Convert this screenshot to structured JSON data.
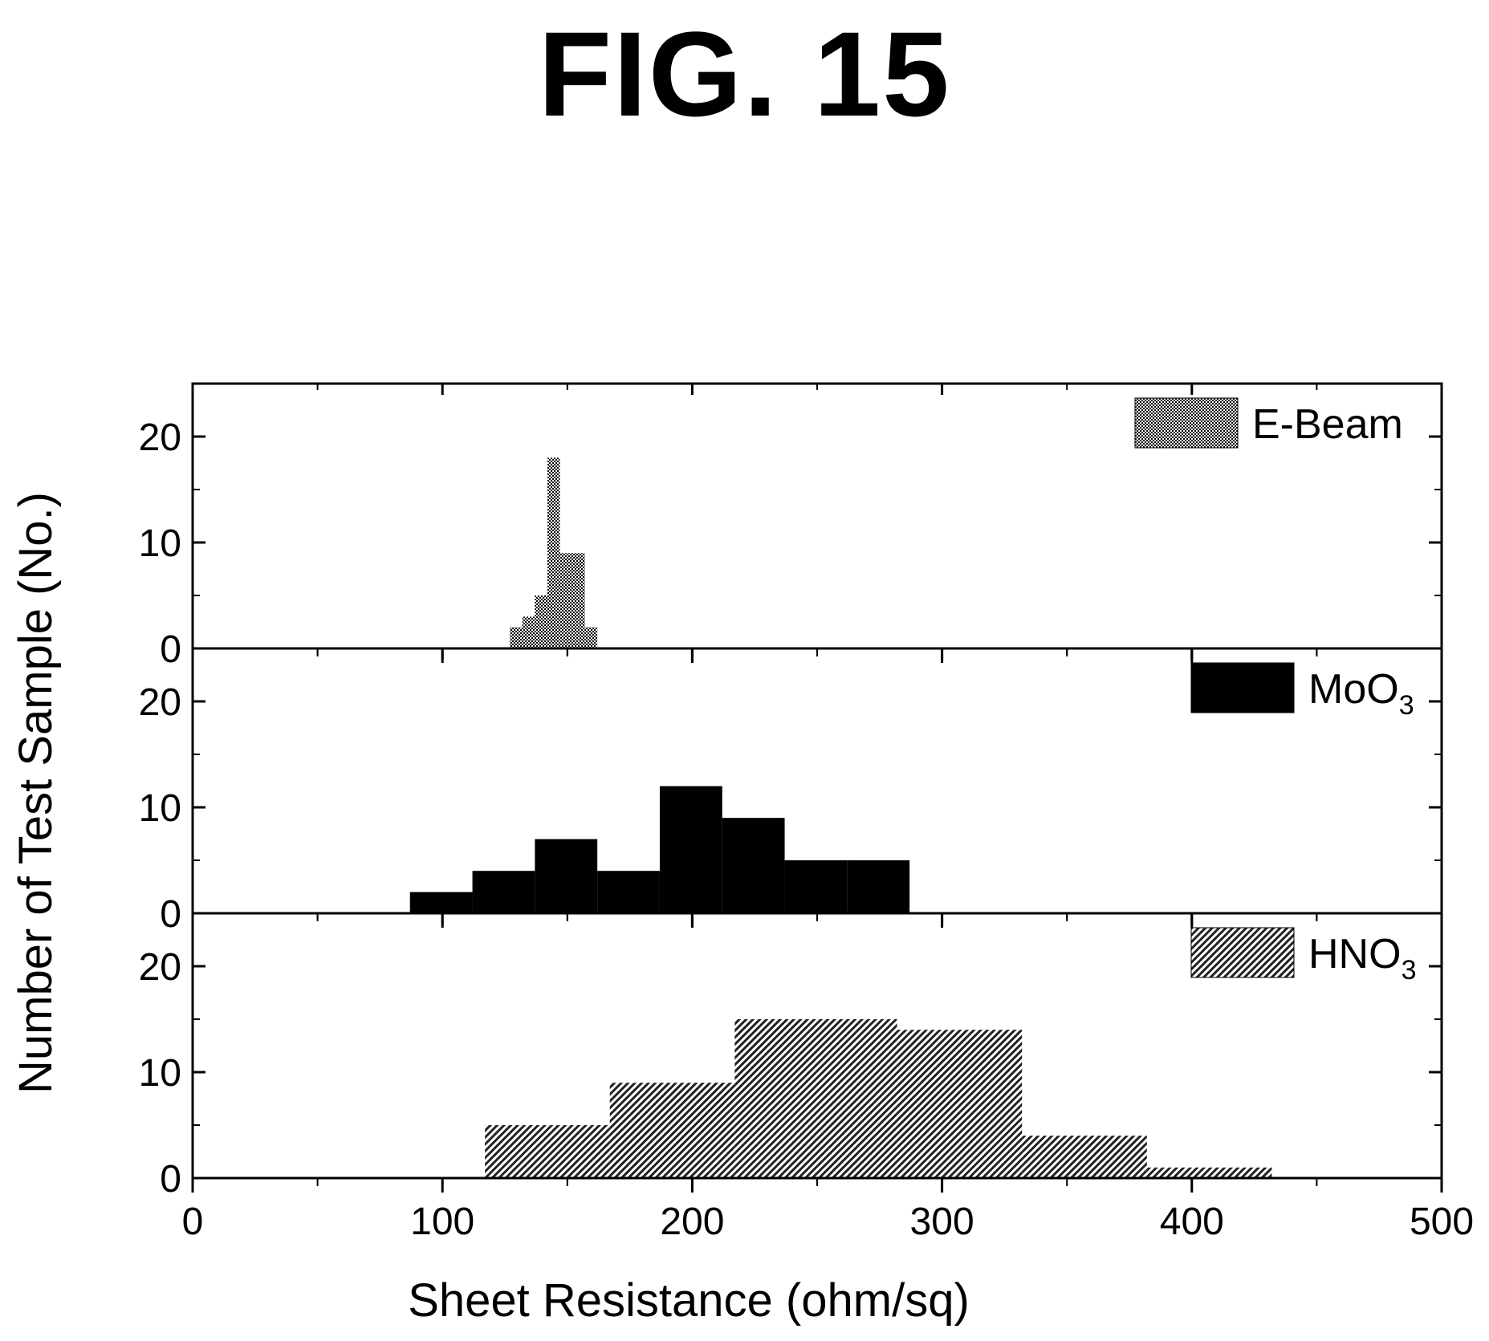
{
  "figure_title": "FIG. 15",
  "chart_data": {
    "type": "bar",
    "subtype": "stacked-histogram-panels",
    "xlabel": "Sheet Resistance (ohm/sq)",
    "ylabel": "Number of Test Sample (No.)",
    "xlim": [
      0,
      500
    ],
    "ylim": [
      0,
      25
    ],
    "x_ticks": [
      0,
      100,
      200,
      300,
      400,
      500
    ],
    "y_ticks": [
      0,
      10,
      20
    ],
    "grid": false,
    "legend_position": "top-right",
    "panels": [
      {
        "legend_label": "E-Beam",
        "legend_sub": "",
        "fill": "#555555",
        "pattern": "dots",
        "bins": [
          {
            "x0": 127,
            "x1": 132,
            "count": 2
          },
          {
            "x0": 132,
            "x1": 137,
            "count": 3
          },
          {
            "x0": 137,
            "x1": 142,
            "count": 5
          },
          {
            "x0": 142,
            "x1": 147,
            "count": 18
          },
          {
            "x0": 147,
            "x1": 157,
            "count": 9
          },
          {
            "x0": 157,
            "x1": 162,
            "count": 2
          }
        ]
      },
      {
        "legend_label": "MoO",
        "legend_sub": "3",
        "fill": "#000000",
        "pattern": "solid",
        "bins": [
          {
            "x0": 87,
            "x1": 112,
            "count": 2
          },
          {
            "x0": 112,
            "x1": 137,
            "count": 4
          },
          {
            "x0": 137,
            "x1": 162,
            "count": 7
          },
          {
            "x0": 162,
            "x1": 187,
            "count": 4
          },
          {
            "x0": 187,
            "x1": 212,
            "count": 12
          },
          {
            "x0": 212,
            "x1": 237,
            "count": 9
          },
          {
            "x0": 237,
            "x1": 262,
            "count": 5
          },
          {
            "x0": 262,
            "x1": 287,
            "count": 5
          }
        ]
      },
      {
        "legend_label": "HNO",
        "legend_sub": "3",
        "fill": "#666666",
        "pattern": "hatch",
        "bins": [
          {
            "x0": 117,
            "x1": 167,
            "count": 5
          },
          {
            "x0": 167,
            "x1": 217,
            "count": 9
          },
          {
            "x0": 217,
            "x1": 282,
            "count": 15
          },
          {
            "x0": 282,
            "x1": 332,
            "count": 14
          },
          {
            "x0": 332,
            "x1": 382,
            "count": 4
          },
          {
            "x0": 382,
            "x1": 432,
            "count": 1
          }
        ]
      }
    ]
  }
}
